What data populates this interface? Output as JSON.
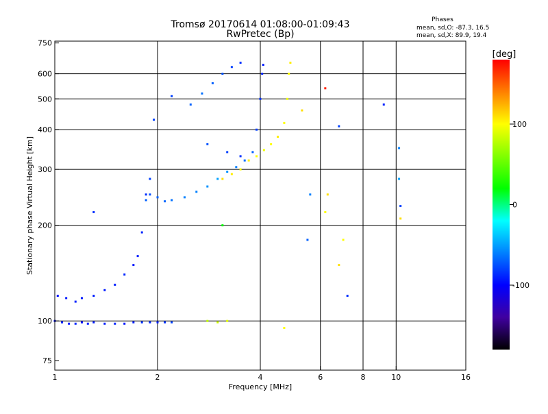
{
  "chart_data": {
    "type": "scatter",
    "title": "Tromsø 20170614 01:08:00-01:09:43",
    "subtitle": "RwPretec (Bp)",
    "phase_info": {
      "heading": "Phases",
      "line_o": "mean, sd,O: -87.3, 16.5",
      "line_x": "mean, sd,X:  89.9, 19.4"
    },
    "xlabel": "Frequency [MHz]",
    "ylabel": "Stationary phase Virtual Height [km]",
    "xscale": "log",
    "yscale": "log",
    "xlim": [
      1,
      16
    ],
    "ylim": [
      70,
      760
    ],
    "xticks": [
      1,
      2,
      4,
      6,
      8,
      10,
      16
    ],
    "yticks": [
      75,
      100,
      200,
      300,
      400,
      500,
      600,
      750
    ],
    "grid_x": [
      2,
      4,
      6,
      8,
      10
    ],
    "grid_y": [
      100,
      200,
      300,
      400,
      500,
      600
    ],
    "colorbar": {
      "label": "[deg]",
      "range": [
        -180,
        180
      ],
      "ticks": [
        100,
        0,
        -100
      ],
      "colors": [
        "#ff0000",
        "#ff8000",
        "#ffff00",
        "#80ff00",
        "#00ff00",
        "#00ffff",
        "#0080ff",
        "#0000ff",
        "#4000a0",
        "#000000"
      ]
    },
    "series": [
      {
        "points": [
          [
            1.0,
            100,
            -95
          ],
          [
            1.05,
            99,
            -90
          ],
          [
            1.1,
            98,
            -92
          ],
          [
            1.15,
            98,
            -88
          ],
          [
            1.2,
            99,
            -95
          ],
          [
            1.25,
            98,
            -90
          ],
          [
            1.3,
            99,
            -92
          ],
          [
            1.4,
            98,
            -90
          ],
          [
            1.5,
            98,
            -88
          ],
          [
            1.6,
            98,
            -92
          ],
          [
            1.7,
            99,
            -90
          ],
          [
            1.8,
            99,
            -85
          ],
          [
            1.9,
            99,
            -88
          ],
          [
            2.0,
            99,
            -90
          ],
          [
            2.1,
            99,
            -85
          ],
          [
            2.2,
            99,
            -80
          ]
        ]
      },
      {
        "points": [
          [
            1.02,
            120,
            -95
          ],
          [
            1.08,
            118,
            -92
          ],
          [
            1.15,
            115,
            -90
          ],
          [
            1.2,
            118,
            -92
          ],
          [
            1.3,
            120,
            -90
          ],
          [
            1.4,
            125,
            -92
          ],
          [
            1.5,
            130,
            -90
          ],
          [
            1.6,
            140,
            -88
          ],
          [
            1.7,
            150,
            -92
          ],
          [
            1.75,
            160,
            -90
          ],
          [
            1.8,
            190,
            -88
          ],
          [
            1.85,
            250,
            -85
          ],
          [
            1.9,
            280,
            -80
          ]
        ]
      },
      {
        "points": [
          [
            1.85,
            240,
            -70
          ],
          [
            1.9,
            250,
            -75
          ],
          [
            2.0,
            245,
            -70
          ],
          [
            2.1,
            238,
            -68
          ],
          [
            2.2,
            240,
            -65
          ],
          [
            2.4,
            245,
            -60
          ],
          [
            2.6,
            255,
            -60
          ],
          [
            2.8,
            265,
            -55
          ],
          [
            3.0,
            280,
            -50
          ],
          [
            3.2,
            295,
            -55
          ],
          [
            3.4,
            305,
            -60
          ],
          [
            3.6,
            320,
            -65
          ],
          [
            3.8,
            340,
            -70
          ],
          [
            3.9,
            400,
            -80
          ],
          [
            4.0,
            500,
            -85
          ],
          [
            4.05,
            600,
            -90
          ],
          [
            4.08,
            640,
            -92
          ]
        ]
      },
      {
        "points": [
          [
            3.1,
            280,
            110
          ],
          [
            3.3,
            290,
            105
          ],
          [
            3.5,
            300,
            100
          ],
          [
            3.7,
            320,
            105
          ],
          [
            3.9,
            330,
            100
          ],
          [
            4.1,
            345,
            95
          ],
          [
            4.3,
            360,
            100
          ],
          [
            4.5,
            380,
            105
          ],
          [
            4.7,
            420,
            100
          ],
          [
            4.8,
            500,
            95
          ],
          [
            4.85,
            600,
            100
          ],
          [
            4.9,
            650,
            105
          ],
          [
            2.8,
            100,
            80
          ],
          [
            3.0,
            99,
            85
          ],
          [
            3.2,
            100,
            90
          ]
        ]
      },
      {
        "points": [
          [
            1.95,
            430,
            -80
          ],
          [
            2.5,
            480,
            -70
          ],
          [
            2.7,
            520,
            -65
          ],
          [
            2.9,
            560,
            -70
          ],
          [
            3.1,
            600,
            -75
          ],
          [
            3.3,
            630,
            -80
          ],
          [
            3.5,
            650,
            -85
          ],
          [
            2.2,
            510,
            -80
          ],
          [
            1.3,
            220,
            -85
          ],
          [
            2.8,
            360,
            -75
          ],
          [
            3.2,
            340,
            -80
          ],
          [
            3.5,
            330,
            -85
          ]
        ]
      },
      {
        "points": [
          [
            5.3,
            460,
            110
          ],
          [
            5.6,
            250,
            -60
          ],
          [
            5.5,
            180,
            -70
          ],
          [
            6.2,
            540,
            170
          ],
          [
            6.2,
            220,
            100
          ],
          [
            6.3,
            250,
            110
          ],
          [
            6.8,
            410,
            -80
          ],
          [
            7.2,
            120,
            -85
          ],
          [
            7.0,
            180,
            100
          ],
          [
            6.8,
            150,
            110
          ],
          [
            9.2,
            480,
            -90
          ],
          [
            10.2,
            350,
            -60
          ],
          [
            10.3,
            230,
            -80
          ],
          [
            10.3,
            210,
            110
          ],
          [
            10.2,
            280,
            -50
          ],
          [
            4.7,
            95,
            100
          ],
          [
            3.1,
            200,
            20
          ]
        ]
      }
    ]
  }
}
